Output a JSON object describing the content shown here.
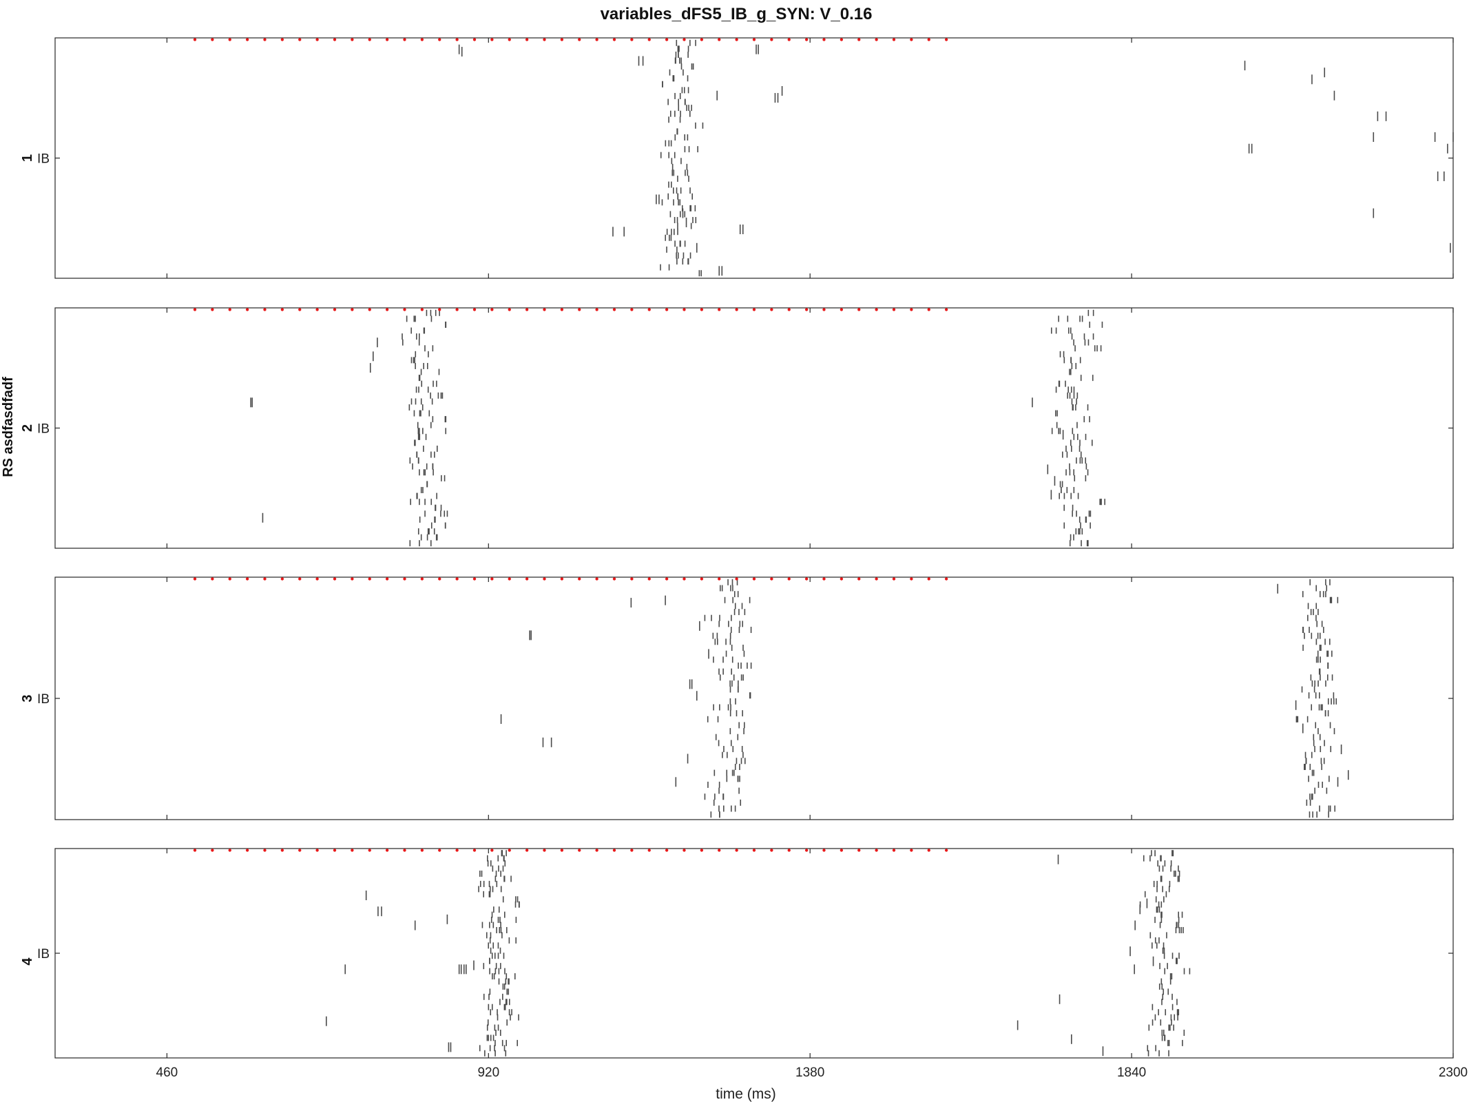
{
  "chart_data": {
    "type": "raster",
    "title": "variables_dFS5_IB_g_SYN: V_0.16",
    "xlabel": "time (ms)",
    "ylabel": "RS asdfasdfadf",
    "xlim": [
      300,
      2300
    ],
    "xticks": [
      460,
      920,
      1380,
      1840,
      2300
    ],
    "grid": false,
    "stimulus": {
      "color": "#e8191a",
      "start": 500,
      "end": 1580,
      "interval": 25
    },
    "spike_color": "#4a4a4a",
    "panels": [
      {
        "id": "1",
        "ylabel": "IB",
        "bursts": [
          {
            "center": 1192,
            "spread": 18,
            "width": 55
          }
        ],
        "sparse": [
          [
            878,
            0.02
          ],
          [
            882,
            0.03
          ],
          [
            1135,
            0.07
          ],
          [
            1141,
            0.07
          ],
          [
            1303,
            0.02
          ],
          [
            1306,
            0.02
          ],
          [
            1340,
            0.2
          ],
          [
            1330,
            0.23
          ],
          [
            1334,
            0.23
          ],
          [
            1098,
            0.81
          ],
          [
            1114,
            0.81
          ],
          [
            2002,
            0.09
          ],
          [
            2098,
            0.15
          ],
          [
            2116,
            0.12
          ],
          [
            2130,
            0.22
          ],
          [
            2192,
            0.31
          ],
          [
            2204,
            0.31
          ],
          [
            2186,
            0.4
          ],
          [
            2008,
            0.45
          ],
          [
            2012,
            0.45
          ],
          [
            2274,
            0.4
          ],
          [
            2300,
            0.4
          ],
          [
            2292,
            0.45
          ],
          [
            2278,
            0.57
          ],
          [
            2287,
            0.57
          ],
          [
            1160,
            0.67
          ],
          [
            1164,
            0.67
          ],
          [
            1198,
            0.73
          ],
          [
            1280,
            0.8
          ],
          [
            1284,
            0.8
          ],
          [
            1218,
            0.88
          ],
          [
            2296,
            0.88
          ],
          [
            2186,
            0.73
          ],
          [
            1250,
            0.98
          ],
          [
            1254,
            0.98
          ],
          [
            1247,
            0.22
          ],
          [
            1203,
            0.77
          ]
        ]
      },
      {
        "id": "2",
        "ylabel": "IB",
        "bursts": [
          {
            "center": 830,
            "spread": 20,
            "width": 60
          },
          {
            "center": 1762,
            "spread": 20,
            "width": 60
          }
        ],
        "sparse": [
          [
            580,
            0.38
          ],
          [
            582,
            0.38
          ],
          [
            597,
            0.88
          ],
          [
            761,
            0.12
          ],
          [
            755,
            0.18
          ],
          [
            751,
            0.23
          ],
          [
            1698,
            0.38
          ],
          [
            1742,
            0.52
          ],
          [
            1720,
            0.67
          ],
          [
            1730,
            0.72
          ],
          [
            1725,
            0.78
          ]
        ]
      },
      {
        "id": "3",
        "ylabel": "IB",
        "bursts": [
          {
            "center": 1269,
            "spread": 22,
            "width": 60
          },
          {
            "center": 2107,
            "spread": 18,
            "width": 55
          }
        ],
        "sparse": [
          [
            1173,
            0.07
          ],
          [
            1222,
            0.18
          ],
          [
            1235,
            0.3
          ],
          [
            1208,
            0.43
          ],
          [
            1211,
            0.43
          ],
          [
            1218,
            0.48
          ],
          [
            979,
            0.22
          ],
          [
            981,
            0.22
          ],
          [
            938,
            0.58
          ],
          [
            998,
            0.68
          ],
          [
            1010,
            0.68
          ],
          [
            1124,
            0.08
          ],
          [
            1188,
            0.85
          ],
          [
            2049,
            0.02
          ],
          [
            2075,
            0.52
          ],
          [
            2085,
            0.62
          ],
          [
            2140,
            0.71
          ],
          [
            2150,
            0.82
          ],
          [
            2135,
            0.85
          ],
          [
            1205,
            0.75
          ]
        ]
      },
      {
        "id": "4",
        "ylabel": "IB",
        "bursts": [
          {
            "center": 935,
            "spread": 18,
            "width": 55
          },
          {
            "center": 1888,
            "spread": 18,
            "width": 55
          }
        ],
        "sparse": [
          [
            745,
            0.2
          ],
          [
            762,
            0.28
          ],
          [
            767,
            0.28
          ],
          [
            715,
            0.57
          ],
          [
            688,
            0.83
          ],
          [
            815,
            0.35
          ],
          [
            861,
            0.32
          ],
          [
            899,
            0.55
          ],
          [
            878,
            0.57
          ],
          [
            881,
            0.57
          ],
          [
            885,
            0.57
          ],
          [
            888,
            0.57
          ],
          [
            1735,
            0.02
          ],
          [
            1862,
            0.24
          ],
          [
            1852,
            0.27
          ],
          [
            1845,
            0.35
          ],
          [
            1871,
            0.53
          ],
          [
            1844,
            0.57
          ],
          [
            1838,
            0.48
          ],
          [
            1737,
            0.72
          ],
          [
            1677,
            0.85
          ],
          [
            1754,
            0.92
          ],
          [
            1799,
            0.98
          ],
          [
            863,
            0.96
          ],
          [
            866,
            0.96
          ]
        ]
      }
    ]
  }
}
